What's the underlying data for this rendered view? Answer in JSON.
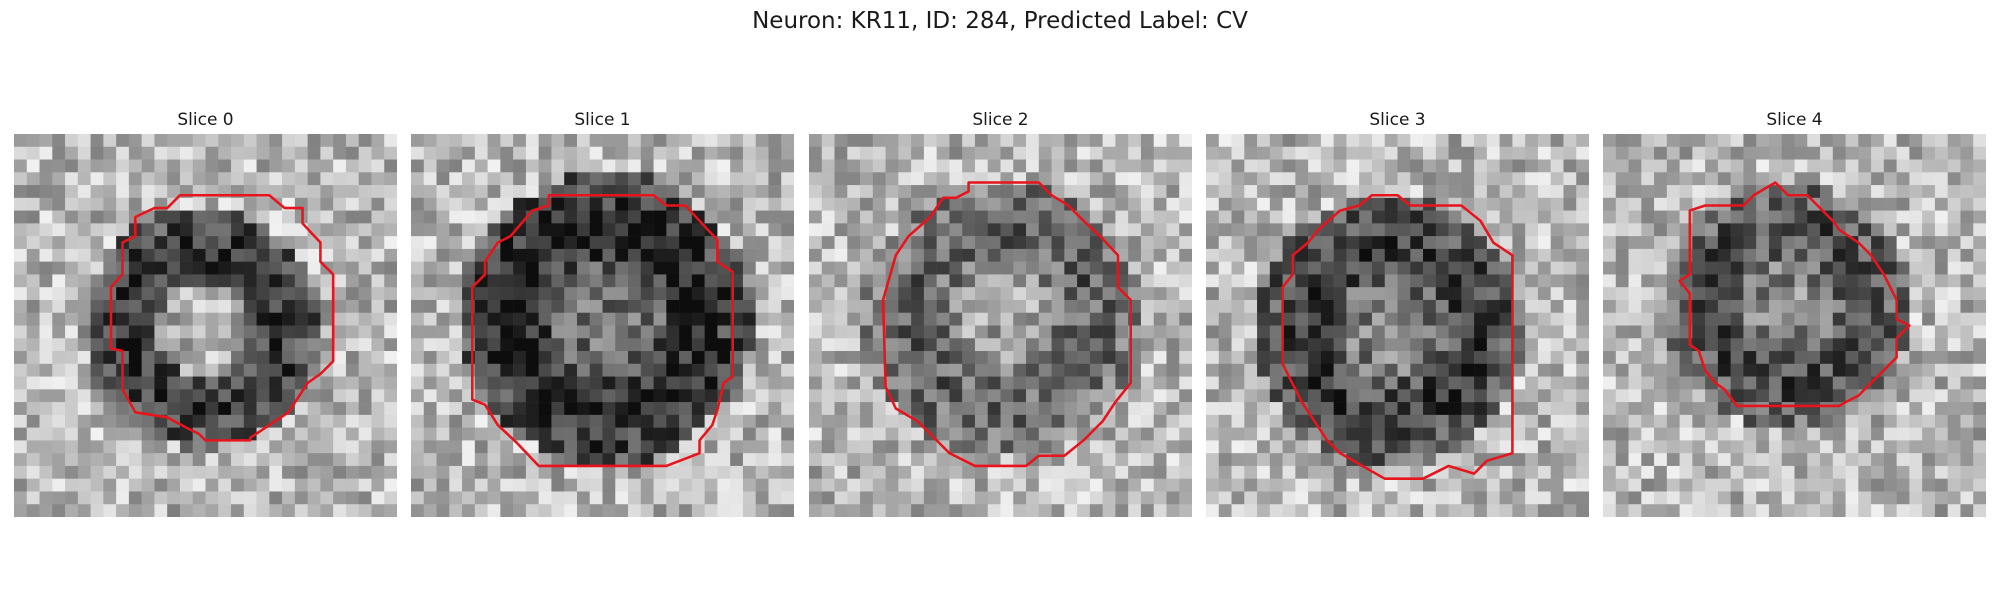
{
  "figure": {
    "title": "Neuron: KR11, ID: 284, Predicted Label: CV"
  },
  "colors": {
    "contour": "#e8141c"
  },
  "panels": [
    {
      "title": "Slice 0"
    },
    {
      "title": "Slice 1"
    },
    {
      "title": "Slice 2"
    },
    {
      "title": "Slice 3"
    },
    {
      "title": "Slice 4"
    }
  ]
}
